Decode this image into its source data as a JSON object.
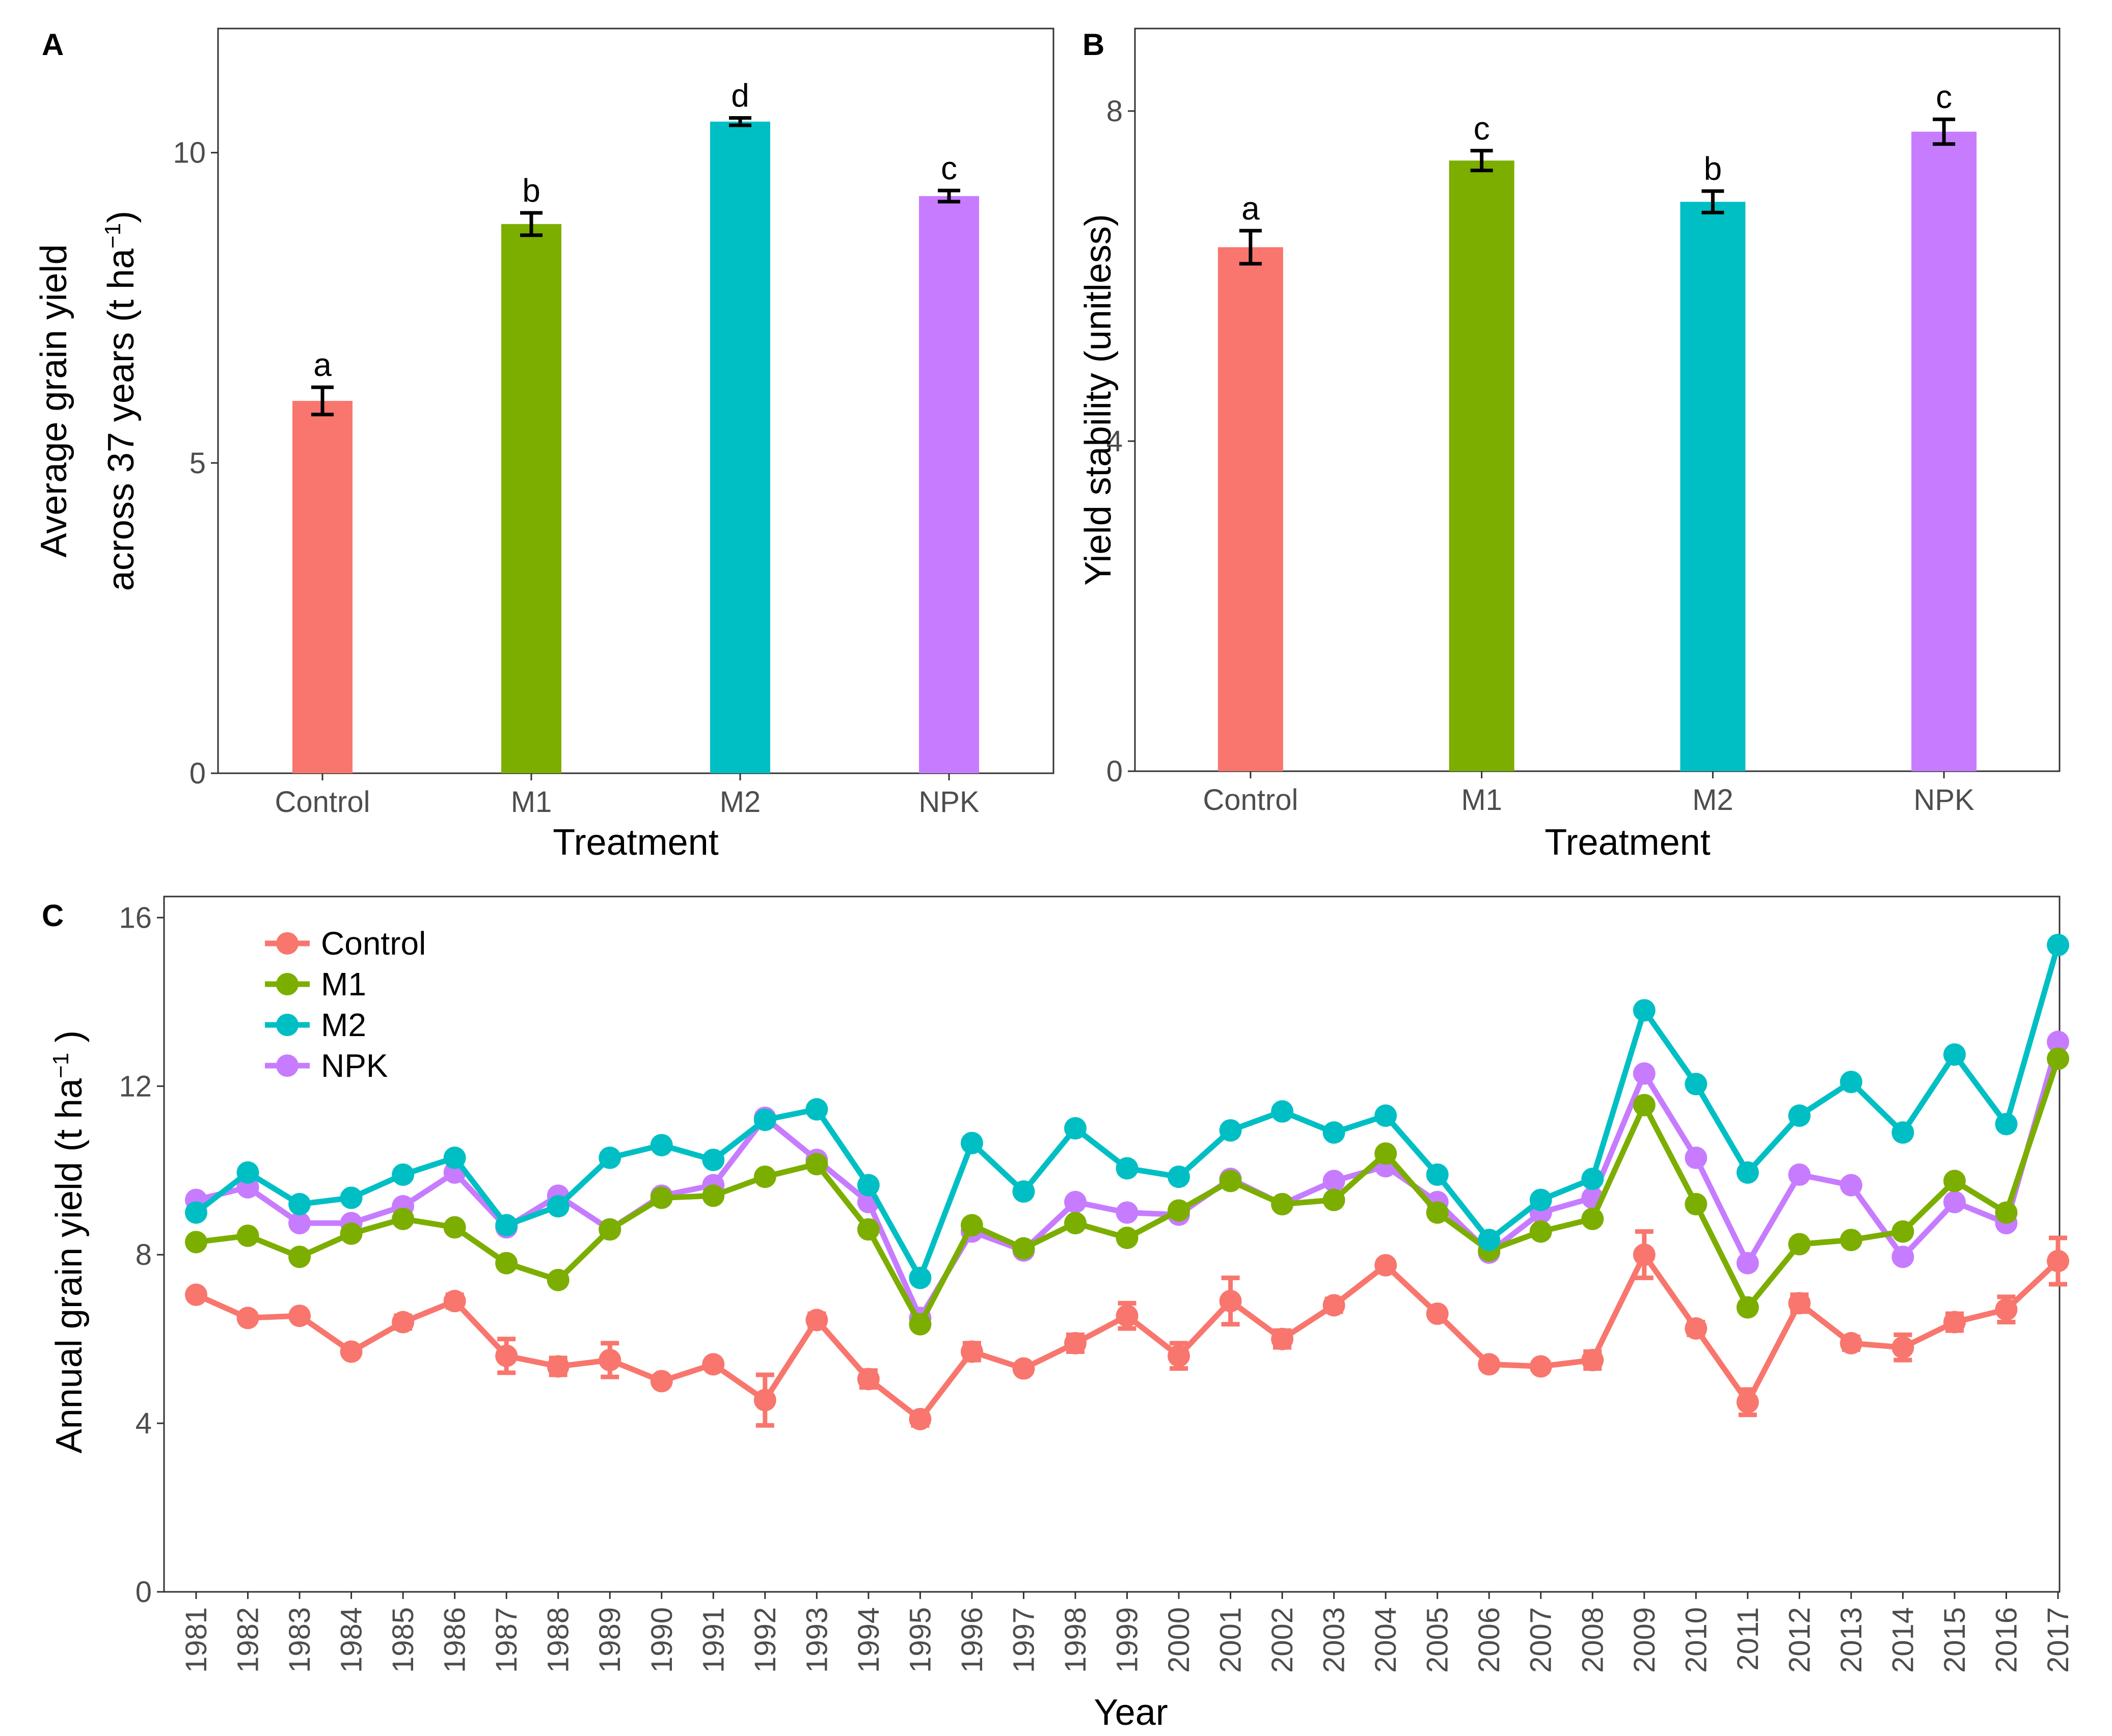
{
  "panels": {
    "a": {
      "tag": "A",
      "y_title_line1": "Average grain yield",
      "y_title_line2": "across 37 years (t ha",
      "y_title_sup": "−1",
      "y_title_close": ")",
      "x_title": "Treatment"
    },
    "b": {
      "tag": "B",
      "y_title": "Yield stability (unitless)",
      "x_title": "Treatment"
    },
    "c": {
      "tag": "C",
      "y_title": "Annual grain yield (t  ha",
      "y_title_sup": "−1",
      "y_title_close": " )",
      "x_title": "Year"
    }
  },
  "colors": {
    "Control": "#F8766D",
    "M1": "#7CAE00",
    "M2": "#00BFC4",
    "NPK": "#C77CFF"
  },
  "chart_data": [
    {
      "id": "A",
      "type": "bar",
      "title": "",
      "xlabel": "Treatment",
      "ylabel": "Average grain yield across 37 years (t ha−1)",
      "categories": [
        "Control",
        "M1",
        "M2",
        "NPK"
      ],
      "values": [
        6.0,
        8.85,
        10.5,
        9.3
      ],
      "errors": [
        0.22,
        0.18,
        0.06,
        0.09
      ],
      "letters": [
        "a",
        "b",
        "d",
        "c"
      ],
      "ylim": [
        0,
        12.0
      ],
      "yticks": [
        0,
        5,
        10
      ],
      "ytick_labels": [
        "0",
        "5",
        "10"
      ]
    },
    {
      "id": "B",
      "type": "bar",
      "title": "",
      "xlabel": "Treatment",
      "ylabel": "Yield stability (unitless)",
      "categories": [
        "Control",
        "M1",
        "M2",
        "NPK"
      ],
      "values": [
        6.35,
        7.4,
        6.9,
        7.75
      ],
      "errors": [
        0.2,
        0.12,
        0.13,
        0.15
      ],
      "letters": [
        "a",
        "c",
        "b",
        "c"
      ],
      "ylim": [
        0,
        9.0
      ],
      "yticks": [
        0,
        4,
        8
      ],
      "ytick_labels": [
        "0",
        "4",
        "8"
      ]
    },
    {
      "id": "C",
      "type": "line",
      "title": "",
      "xlabel": "Year",
      "ylabel": "Annual grain yield (t ha−1)",
      "x": [
        "1981",
        "1982",
        "1983",
        "1984",
        "1985",
        "1986",
        "1987",
        "1988",
        "1989",
        "1990",
        "1991",
        "1992",
        "1993",
        "1994",
        "1995",
        "1996",
        "1997",
        "1998",
        "1999",
        "2000",
        "2001",
        "2002",
        "2003",
        "2004",
        "2005",
        "2006",
        "2007",
        "2008",
        "2009",
        "2010",
        "2011",
        "2012",
        "2013",
        "2014",
        "2015",
        "2016",
        "2017"
      ],
      "ylim": [
        0,
        16.5
      ],
      "yticks": [
        0,
        4,
        8,
        12,
        16
      ],
      "ytick_labels": [
        "0",
        "4",
        "8",
        "12",
        "16"
      ],
      "legend_position": "top-left",
      "series": [
        {
          "name": "Control",
          "values": [
            7.05,
            6.5,
            6.55,
            5.7,
            6.4,
            6.9,
            5.6,
            5.35,
            5.5,
            5.0,
            5.4,
            4.55,
            6.45,
            5.05,
            4.1,
            5.7,
            5.3,
            5.9,
            6.55,
            5.6,
            6.9,
            6.0,
            6.8,
            7.75,
            6.6,
            5.4,
            5.35,
            5.5,
            8.0,
            6.25,
            4.5,
            6.85,
            5.9,
            5.8,
            6.4,
            6.7,
            7.85
          ],
          "errors": [
            0.12,
            0.1,
            0.12,
            0.1,
            0.15,
            0.15,
            0.4,
            0.2,
            0.4,
            0.1,
            0.1,
            0.6,
            0.15,
            0.2,
            0.15,
            0.2,
            0.1,
            0.2,
            0.3,
            0.3,
            0.55,
            0.2,
            0.15,
            0.1,
            0.1,
            0.1,
            0.1,
            0.2,
            0.55,
            0.15,
            0.3,
            0.2,
            0.15,
            0.3,
            0.2,
            0.3,
            0.55
          ]
        },
        {
          "name": "M1",
          "values": [
            8.3,
            8.45,
            7.95,
            8.5,
            8.85,
            8.65,
            7.8,
            7.4,
            8.6,
            9.35,
            9.4,
            9.85,
            10.15,
            8.6,
            6.35,
            8.7,
            8.15,
            8.75,
            8.4,
            9.05,
            9.75,
            9.2,
            9.3,
            10.4,
            9.0,
            8.1,
            8.55,
            8.85,
            11.55,
            9.2,
            6.75,
            8.25,
            8.35,
            8.55,
            9.75,
            9.0,
            12.65
          ]
        },
        {
          "name": "M2",
          "values": [
            9.0,
            9.95,
            9.2,
            9.35,
            9.9,
            10.3,
            8.7,
            9.15,
            10.3,
            10.6,
            10.25,
            11.2,
            11.45,
            9.65,
            7.45,
            10.65,
            9.5,
            11.0,
            10.05,
            9.85,
            10.95,
            11.4,
            10.9,
            11.3,
            9.9,
            8.35,
            9.3,
            9.8,
            13.8,
            12.05,
            9.95,
            11.3,
            12.1,
            10.9,
            12.75,
            11.1,
            15.35
          ]
        },
        {
          "name": "NPK",
          "values": [
            9.3,
            9.6,
            8.75,
            8.75,
            9.15,
            9.95,
            8.65,
            9.4,
            8.6,
            9.4,
            9.65,
            11.25,
            10.25,
            9.25,
            6.5,
            8.55,
            8.1,
            9.25,
            9.0,
            8.95,
            9.8,
            9.2,
            9.75,
            10.1,
            9.25,
            8.05,
            9.0,
            9.35,
            12.3,
            10.3,
            7.8,
            9.9,
            9.65,
            7.95,
            9.25,
            8.75,
            13.05
          ]
        }
      ]
    }
  ]
}
